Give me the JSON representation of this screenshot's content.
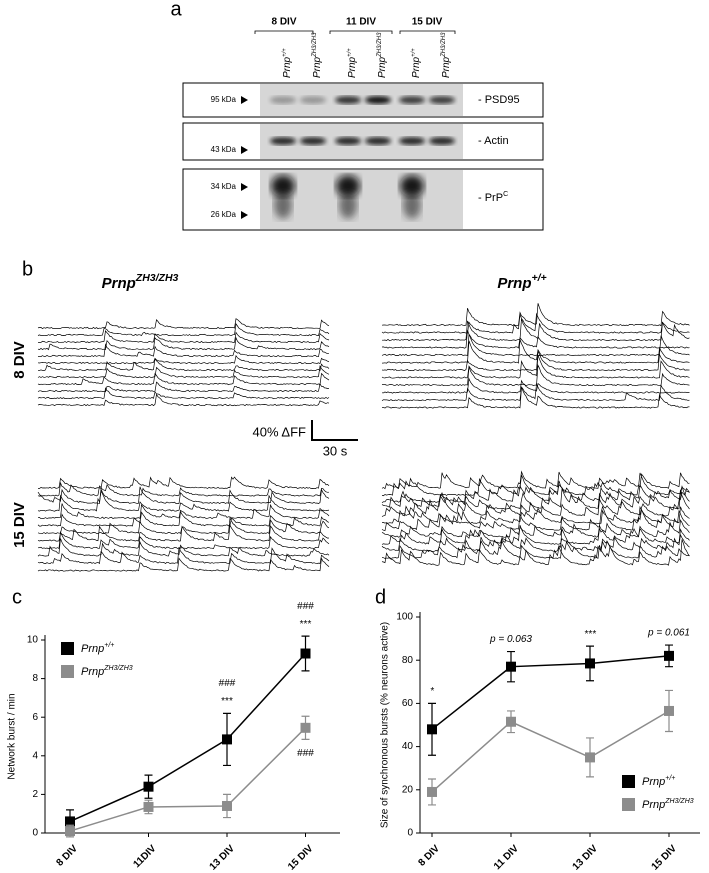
{
  "panel_a": {
    "label": "a",
    "groups": [
      "8 DIV",
      "11 DIV",
      "15 DIV"
    ],
    "lanes": [
      {
        "text": "Prnp",
        "sup": "+/+"
      },
      {
        "text": "Prnp",
        "sup": "ZH3/ZH3"
      },
      {
        "text": "Prnp",
        "sup": "+/+"
      },
      {
        "text": "Prnp",
        "sup": "ZH3/ZH3"
      },
      {
        "text": "Prnp",
        "sup": "+/+"
      },
      {
        "text": "Prnp",
        "sup": "ZH3/ZH3"
      }
    ],
    "markers": [
      "95 kDa",
      "43 kDa",
      "34 kDa",
      "26 kDa"
    ],
    "bands": [
      {
        "text": "- PSD95"
      },
      {
        "text": "- Actin"
      },
      {
        "text": "- PrP",
        "sup": "C"
      }
    ]
  },
  "panel_b": {
    "label": "b",
    "columns": [
      {
        "text": "Prnp",
        "sup": "ZH3/ZH3"
      },
      {
        "text": "Prnp",
        "sup": "+/+"
      }
    ],
    "rows": [
      "8 DIV",
      "15 DIV"
    ],
    "scale_y": "40% ΔFF",
    "scale_x": "30 s"
  },
  "chart_data": [
    {
      "type": "line",
      "panel_label": "c",
      "ylabel": "Network burst / min",
      "categories": [
        "8 DIV",
        "11DIV",
        "13 DIV",
        "15 DIV"
      ],
      "ylim": [
        0,
        10
      ],
      "yticks": [
        0,
        2,
        4,
        6,
        8,
        10
      ],
      "legend": "upper left",
      "series": [
        {
          "name": "Prnp",
          "name_sup": "+/+",
          "color": "#000000",
          "values": [
            0.6,
            2.4,
            4.85,
            9.3
          ],
          "errors": [
            0.6,
            0.6,
            1.35,
            0.9
          ]
        },
        {
          "name": "Prnp",
          "name_sup": "ZH3/ZH3",
          "color": "#8c8c8c",
          "values": [
            0.1,
            1.35,
            1.4,
            5.45
          ],
          "errors": [
            0.3,
            0.35,
            0.6,
            0.6
          ]
        }
      ],
      "annotations_above": [
        [],
        [],
        [
          "###",
          "***"
        ],
        [
          "###",
          "***"
        ]
      ],
      "annotations_below": [
        [],
        [],
        [],
        [
          "###"
        ]
      ]
    },
    {
      "type": "line",
      "panel_label": "d",
      "ylabel": "Size of synchronous bursts (% neurons active)",
      "categories": [
        "8 DIV",
        "11 DIV",
        "13 DIV",
        "15 DIV"
      ],
      "ylim": [
        0,
        100
      ],
      "yticks": [
        0,
        20,
        40,
        60,
        80,
        100
      ],
      "legend": "lower right",
      "series": [
        {
          "name": "Prnp",
          "name_sup": "+/+",
          "color": "#000000",
          "values": [
            48,
            77,
            78.5,
            82
          ],
          "errors": [
            12,
            7,
            8,
            5
          ]
        },
        {
          "name": "Prnp",
          "name_sup": "ZH3/ZH3",
          "color": "#8c8c8c",
          "values": [
            19,
            51.5,
            35,
            56.5
          ],
          "errors": [
            6,
            5,
            9,
            9.5
          ]
        }
      ],
      "annotations_above": [
        [
          "*"
        ],
        [
          "p = 0.063"
        ],
        [
          "***"
        ],
        [
          "p = 0.061"
        ]
      ],
      "annotations_below": [
        [],
        [],
        [],
        []
      ]
    }
  ]
}
